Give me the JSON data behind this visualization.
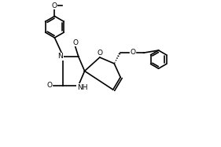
{
  "bg_color": "#ffffff",
  "line_color": "#000000",
  "line_width": 1.2,
  "font_size": 6.5,
  "xlim": [
    0,
    10
  ],
  "ylim": [
    0,
    7
  ]
}
